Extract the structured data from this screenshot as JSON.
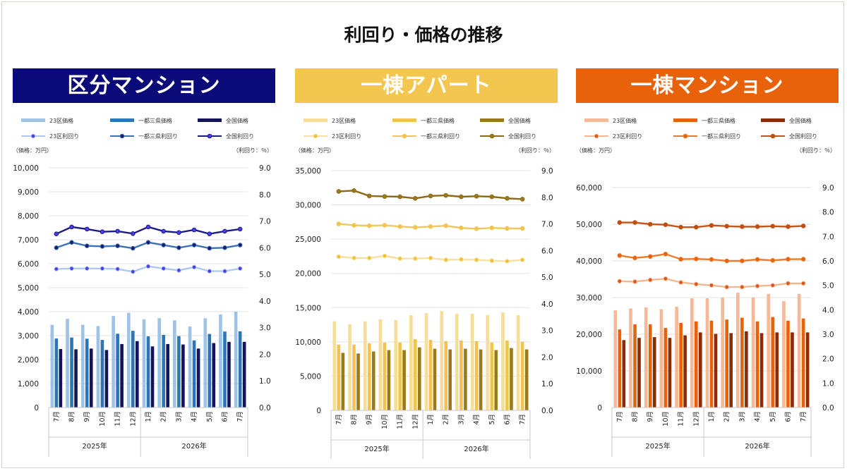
{
  "title": "利回り・価格の推移",
  "chart_data": [
    {
      "type": "bar+line",
      "panel_title": "区分マンション",
      "header_color": "#0a0a78",
      "bar_colors": [
        "#9dc3e6",
        "#2e75b6",
        "#14145a"
      ],
      "line_colors": [
        "#aec9ee",
        "#3a71b8",
        "#1c1a86"
      ],
      "marker_fill": [
        "#4a3df0",
        "#1c1a70",
        "#4a3df0"
      ],
      "categories": [
        "7月",
        "8月",
        "9月",
        "10月",
        "11月",
        "12月",
        "1月",
        "2月",
        "3月",
        "4月",
        "5月",
        "6月",
        "7月"
      ],
      "year_labels": [
        "2025年",
        "2026年"
      ],
      "left_unit": "（価格：万円）",
      "right_unit": "（利回り：％）",
      "ylim": [
        0,
        10000
      ],
      "y_ticks": [
        "0",
        "1,000",
        "2,000",
        "3,000",
        "4,000",
        "5,000",
        "6,000",
        "7,000",
        "8,000",
        "9,000",
        "10,000"
      ],
      "y2lim": [
        0,
        9
      ],
      "y2_ticks": [
        "0.0",
        "1.0",
        "2.0",
        "3.0",
        "4.0",
        "5.0",
        "6.0",
        "7.0",
        "8.0",
        "9.0"
      ],
      "bar_series": [
        {
          "name": "23区価格",
          "values": [
            3450,
            3700,
            3450,
            3400,
            3820,
            3950,
            3680,
            3730,
            3640,
            3380,
            3720,
            3880,
            4000
          ]
        },
        {
          "name": "一都三県価格",
          "values": [
            2880,
            2920,
            2870,
            2820,
            3080,
            3200,
            2970,
            3030,
            2980,
            2800,
            3070,
            3170,
            3180
          ]
        },
        {
          "name": "全国価格",
          "values": [
            2440,
            2430,
            2460,
            2400,
            2650,
            2770,
            2550,
            2650,
            2630,
            2460,
            2690,
            2740,
            2740
          ]
        }
      ],
      "line_series": [
        {
          "name": "23区利回り",
          "values": [
            5.2,
            5.22,
            5.22,
            5.22,
            5.2,
            5.1,
            5.3,
            5.22,
            5.15,
            5.27,
            5.12,
            5.12,
            5.22
          ]
        },
        {
          "name": "一都三県利回り",
          "values": [
            6.0,
            6.2,
            6.07,
            6.05,
            6.07,
            5.98,
            6.2,
            6.1,
            6.0,
            6.1,
            5.98,
            6.0,
            6.1
          ]
        },
        {
          "name": "全国利回り",
          "values": [
            6.52,
            6.78,
            6.7,
            6.6,
            6.62,
            6.53,
            6.78,
            6.62,
            6.57,
            6.67,
            6.52,
            6.62,
            6.7
          ]
        }
      ]
    },
    {
      "type": "bar+line",
      "panel_title": "一棟アパート",
      "header_color": "#f2c64f",
      "bar_colors": [
        "#f7dd9a",
        "#f2c44e",
        "#9a7a1a"
      ],
      "line_colors": [
        "#f7e0a0",
        "#f0c85a",
        "#8a6a14"
      ],
      "marker_fill": [
        "#f0c030",
        "#f2c44e",
        "#9a7a1a"
      ],
      "categories": [
        "7月",
        "8月",
        "9月",
        "10月",
        "11月",
        "12月",
        "1月",
        "2月",
        "3月",
        "4月",
        "5月",
        "6月",
        "7月"
      ],
      "year_labels": [
        "2025年",
        "2026年"
      ],
      "left_unit": "（価格：万円）",
      "right_unit": "（利回り：％）",
      "ylim": [
        0,
        35000
      ],
      "y_ticks": [
        "0",
        "5,000",
        "10,000",
        "15,000",
        "20,000",
        "25,000",
        "30,000",
        "35,000"
      ],
      "y2lim": [
        0,
        9
      ],
      "y2_ticks": [
        "0.0",
        "1.0",
        "2.0",
        "3.0",
        "4.0",
        "5.0",
        "6.0",
        "7.0",
        "8.0",
        "9.0"
      ],
      "bar_series": [
        {
          "name": "23区価格",
          "values": [
            13000,
            12600,
            13000,
            13300,
            13200,
            13900,
            14200,
            14500,
            14100,
            14100,
            13900,
            14300,
            13900
          ]
        },
        {
          "name": "一都三県価格",
          "values": [
            9600,
            9600,
            9800,
            9900,
            9900,
            10400,
            10300,
            10100,
            10200,
            10100,
            9900,
            10200,
            10000
          ]
        },
        {
          "name": "全国価格",
          "values": [
            8400,
            8300,
            8600,
            8800,
            8800,
            9200,
            9000,
            8900,
            9000,
            8900,
            8800,
            9100,
            8900
          ]
        }
      ],
      "line_series": [
        {
          "name": "23区利回り",
          "values": [
            5.77,
            5.72,
            5.72,
            5.8,
            5.7,
            5.7,
            5.72,
            5.65,
            5.67,
            5.65,
            5.62,
            5.6,
            5.65
          ]
        },
        {
          "name": "一都三県利回り",
          "values": [
            7.0,
            6.95,
            6.93,
            6.95,
            6.9,
            6.87,
            6.9,
            6.93,
            6.85,
            6.82,
            6.85,
            6.83,
            6.83
          ]
        },
        {
          "name": "全国利回り",
          "values": [
            8.22,
            8.25,
            8.05,
            8.03,
            8.02,
            7.96,
            8.05,
            8.07,
            8.02,
            8.04,
            8.02,
            7.96,
            7.93
          ]
        }
      ]
    },
    {
      "type": "bar+line",
      "panel_title": "一棟マンション",
      "header_color": "#e8620c",
      "bar_colors": [
        "#f6b896",
        "#e8620c",
        "#8a2c05"
      ],
      "line_colors": [
        "#f4b68e",
        "#eb7a2a",
        "#c5541a"
      ],
      "marker_fill": [
        "#d8561a",
        "#e8620c",
        "#c04c10"
      ],
      "categories": [
        "7月",
        "8月",
        "9月",
        "10月",
        "11月",
        "12月",
        "1月",
        "2月",
        "3月",
        "4月",
        "5月",
        "6月",
        "7月"
      ],
      "year_labels": [
        "2025年",
        "2026年"
      ],
      "left_unit": "（価格：万円）",
      "right_unit": "（利回り：％）",
      "ylim": [
        0,
        60000
      ],
      "y_ticks": [
        "0",
        "10,000",
        "20,000",
        "30,000",
        "40,000",
        "50,000",
        "60,000"
      ],
      "y2lim": [
        0,
        9
      ],
      "y2_ticks": [
        "0.0",
        "1.0",
        "2.0",
        "3.0",
        "4.0",
        "5.0",
        "6.0",
        "7.0",
        "8.0",
        "9.0"
      ],
      "bar_series": [
        {
          "name": "23区価格",
          "values": [
            26500,
            27000,
            27300,
            26800,
            27500,
            29800,
            29800,
            30000,
            31300,
            30000,
            31000,
            29000,
            31000
          ]
        },
        {
          "name": "一都三県価格",
          "values": [
            21300,
            22700,
            22700,
            21700,
            23100,
            23500,
            23700,
            24000,
            24500,
            23500,
            24700,
            23700,
            24300
          ]
        },
        {
          "name": "全国価格",
          "values": [
            18400,
            19000,
            19200,
            19000,
            19700,
            20500,
            20100,
            20300,
            20800,
            20300,
            20500,
            20500,
            20500
          ]
        }
      ],
      "line_series": [
        {
          "name": "23区利回り",
          "values": [
            5.17,
            5.15,
            5.22,
            5.27,
            5.12,
            5.05,
            5.0,
            4.93,
            4.93,
            4.97,
            5.0,
            5.08,
            5.08
          ]
        },
        {
          "name": "一都三県利回り",
          "values": [
            6.22,
            6.12,
            6.18,
            6.28,
            6.07,
            6.08,
            6.06,
            6.0,
            6.0,
            6.06,
            6.02,
            6.07,
            6.07
          ]
        },
        {
          "name": "全国利回り",
          "values": [
            7.57,
            7.57,
            7.5,
            7.48,
            7.38,
            7.38,
            7.45,
            7.42,
            7.4,
            7.4,
            7.42,
            7.4,
            7.43
          ]
        }
      ]
    }
  ]
}
